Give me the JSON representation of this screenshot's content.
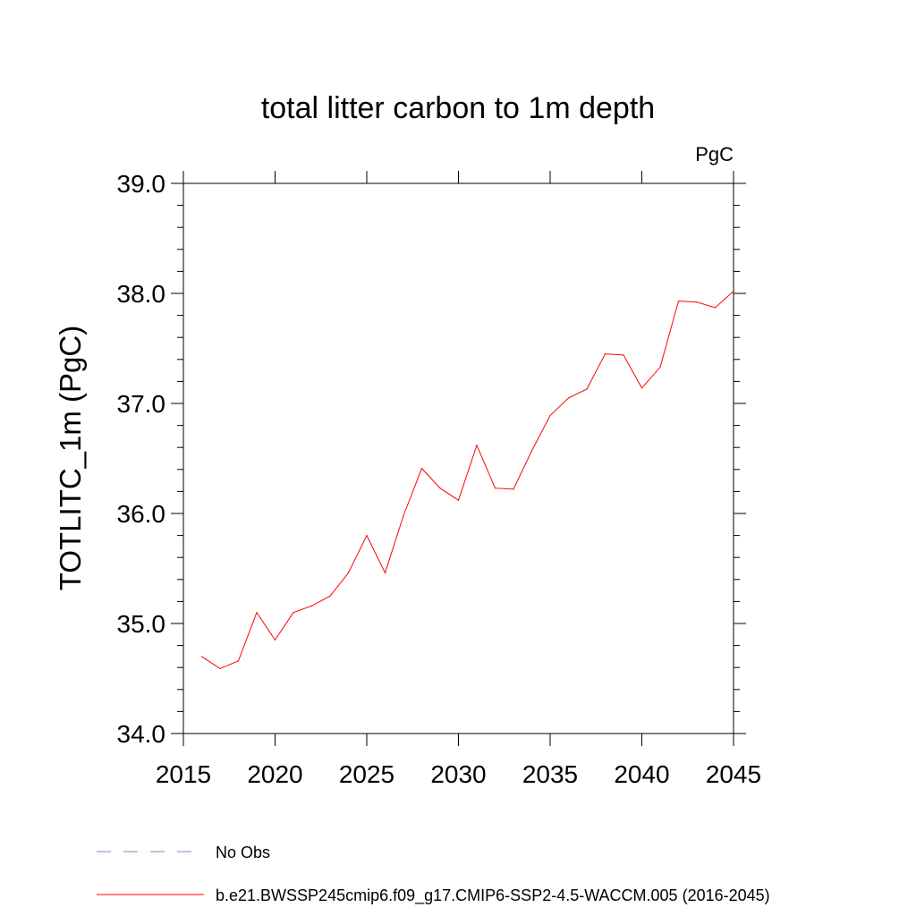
{
  "chart_data": {
    "type": "line",
    "title": "total litter carbon to 1m depth",
    "units": "PgC",
    "ylabel": "TOTLITC_1m  (PgC)",
    "xlabel": "",
    "xlim": [
      2015,
      2045
    ],
    "ylim": [
      34.0,
      39.0
    ],
    "x_ticks": [
      "2015",
      "2020",
      "2025",
      "2030",
      "2035",
      "2040",
      "2045"
    ],
    "y_ticks": [
      "34.0",
      "35.0",
      "36.0",
      "37.0",
      "38.0",
      "39.0"
    ],
    "legend_position": "bottom-left",
    "legend": [
      {
        "name": "No Obs",
        "style": "dashed",
        "color": "#8c7fc0"
      },
      {
        "name": "b.e21.BWSSP245cmip6.f09_g17.CMIP6-SSP2-4.5-WACCM.005 (2016-2045)",
        "style": "solid",
        "color": "#ff0000"
      }
    ],
    "series": [
      {
        "name": "b.e21.BWSSP245cmip6.f09_g17.CMIP6-SSP2-4.5-WACCM.005 (2016-2045)",
        "color": "#ff0000",
        "x": [
          2016,
          2017,
          2018,
          2019,
          2020,
          2021,
          2022,
          2023,
          2024,
          2025,
          2026,
          2027,
          2028,
          2029,
          2030,
          2031,
          2032,
          2033,
          2034,
          2035,
          2036,
          2037,
          2038,
          2039,
          2040,
          2041,
          2042,
          2043,
          2044,
          2045
        ],
        "y": [
          34.7,
          34.59,
          34.66,
          35.1,
          34.85,
          35.1,
          35.16,
          35.25,
          35.46,
          35.8,
          35.46,
          35.98,
          36.41,
          36.23,
          36.12,
          36.62,
          36.23,
          36.22,
          36.57,
          36.89,
          37.05,
          37.13,
          37.45,
          37.44,
          37.14,
          37.33,
          37.93,
          37.92,
          37.87,
          38.02
        ]
      }
    ]
  }
}
